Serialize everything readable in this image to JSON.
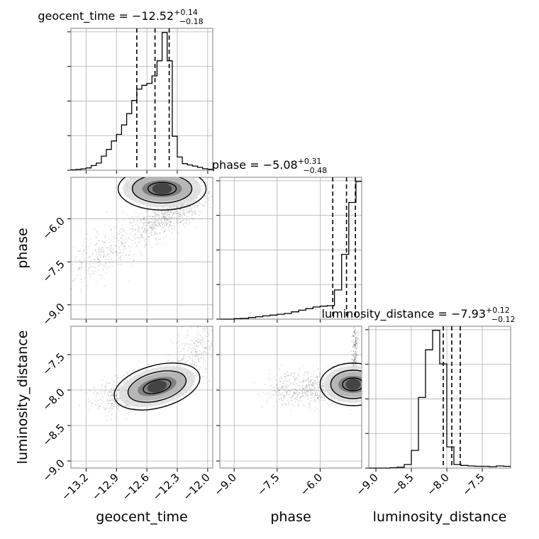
{
  "chart_data": {
    "type": "scatter",
    "variables": [
      {
        "name": "geocent_time",
        "median": "−12.52",
        "plus": "+0.14",
        "minus": "−0.18",
        "range": [
          -13.35,
          -11.95
        ],
        "ticks": [
          "−13.2",
          "−12.9",
          "−12.6",
          "−12.3",
          "−12.0"
        ],
        "tick_values": [
          -13.2,
          -12.9,
          -12.6,
          -12.3,
          -12.0
        ],
        "quantiles": [
          -12.7,
          -12.52,
          -12.38
        ]
      },
      {
        "name": "phase",
        "median": "−5.08",
        "plus": "+0.31",
        "minus": "−0.48",
        "range": [
          -9.5,
          -4.55
        ],
        "ticks": [
          "−9.0",
          "−7.5",
          "−6.0"
        ],
        "tick_values": [
          -9.0,
          -7.5,
          -6.0
        ],
        "quantiles": [
          -5.56,
          -5.08,
          -4.77
        ]
      },
      {
        "name": "luminosity_distance",
        "median": "−7.93",
        "plus": "+0.12",
        "minus": "−0.12",
        "range": [
          -9.1,
          -7.1
        ],
        "ticks": [
          "−9.0",
          "−8.5",
          "−8.0",
          "−7.5"
        ],
        "tick_values": [
          -9.0,
          -8.5,
          -8.0,
          -7.5
        ],
        "quantiles": [
          -8.05,
          -7.93,
          -7.81
        ]
      }
    ],
    "histograms": [
      {
        "variable": "geocent_time",
        "bin_edges": [
          -13.35,
          -13.3,
          -13.25,
          -13.2,
          -13.15,
          -13.1,
          -13.05,
          -13.0,
          -12.95,
          -12.9,
          -12.85,
          -12.8,
          -12.75,
          -12.7,
          -12.65,
          -12.6,
          -12.55,
          -12.5,
          -12.45,
          -12.4,
          -12.35,
          -12.3,
          -12.25,
          -12.2,
          -12.15,
          -12.1,
          -12.05,
          -12.0,
          -11.95
        ],
        "counts": [
          0.2,
          0.4,
          0.7,
          1.2,
          2.5,
          3.8,
          7.5,
          11,
          15.5,
          19,
          24,
          30,
          37,
          43,
          45,
          46,
          50,
          58,
          73,
          58,
          18,
          7,
          3.5,
          2.8,
          2.2,
          1.5,
          0.8,
          0.5
        ]
      },
      {
        "variable": "phase",
        "bin_edges": [
          -9.5,
          -9.25,
          -9.0,
          -8.75,
          -8.5,
          -8.25,
          -8.0,
          -7.75,
          -7.5,
          -7.25,
          -7.0,
          -6.75,
          -6.5,
          -6.25,
          -6.0,
          -5.75,
          -5.5,
          -5.25,
          -5.0,
          -4.75,
          -4.55
        ],
        "counts": [
          0,
          0,
          0.3,
          0.5,
          1,
          1.5,
          2,
          2.5,
          3,
          3.5,
          4.5,
          5.5,
          6.5,
          7.5,
          8,
          8.3,
          18,
          40,
          72,
          85
        ]
      },
      {
        "variable": "luminosity_distance",
        "bin_edges": [
          -9.1,
          -9.0,
          -8.9,
          -8.8,
          -8.7,
          -8.6,
          -8.5,
          -8.4,
          -8.3,
          -8.2,
          -8.1,
          -8.0,
          -7.9,
          -7.8,
          -7.7,
          -7.6,
          -7.5,
          -7.4,
          -7.3,
          -7.2,
          -7.1
        ],
        "counts": [
          0,
          0,
          0,
          0.2,
          0.5,
          2,
          10,
          40,
          67,
          78,
          59,
          12,
          2,
          1.5,
          1.2,
          1,
          1,
          0.8,
          1.2,
          1
        ]
      }
    ],
    "scatter_clouds": [
      {
        "row": 1,
        "col": 0,
        "x": "geocent_time",
        "y": "phase",
        "segments": [
          {
            "from": [
              -13.3,
              -7.8
            ],
            "to": [
              -12.6,
              -6.3
            ],
            "spread": [
              0.12,
              0.35
            ],
            "n": 420
          },
          {
            "from": [
              -12.6,
              -6.3
            ],
            "to": [
              -12.2,
              -5.5
            ],
            "spread": [
              0.08,
              0.25
            ],
            "n": 550
          },
          {
            "from": [
              -12.4,
              -5.1
            ],
            "to": [
              -12.0,
              -5.3
            ],
            "spread": [
              0.05,
              0.25
            ],
            "n": 180
          },
          {
            "from": [
              -12.8,
              -4.9
            ],
            "to": [
              -12.35,
              -4.9
            ],
            "spread": [
              0.05,
              0.2
            ],
            "n": 300
          }
        ],
        "contour_levels": 3
      },
      {
        "row": 2,
        "col": 0,
        "x": "geocent_time",
        "y": "luminosity_distance",
        "segments": [
          {
            "from": [
              -13.0,
              -8.15
            ],
            "to": [
              -12.3,
              -7.85
            ],
            "spread": [
              0.12,
              0.12
            ],
            "n": 900
          },
          {
            "from": [
              -12.3,
              -7.85
            ],
            "to": [
              -12.0,
              -7.2
            ],
            "spread": [
              0.1,
              0.12
            ],
            "n": 350
          }
        ],
        "contour_levels": 3
      },
      {
        "row": 2,
        "col": 1,
        "x": "phase",
        "y": "luminosity_distance",
        "segments": [
          {
            "from": [
              -7.5,
              -8.0
            ],
            "to": [
              -4.7,
              -7.95
            ],
            "spread": [
              0.35,
              0.12
            ],
            "n": 750
          },
          {
            "from": [
              -4.85,
              -8.0
            ],
            "to": [
              -4.75,
              -7.1
            ],
            "spread": [
              0.05,
              0.1
            ],
            "n": 300
          }
        ],
        "contour_levels": 3
      }
    ],
    "grid": true
  }
}
